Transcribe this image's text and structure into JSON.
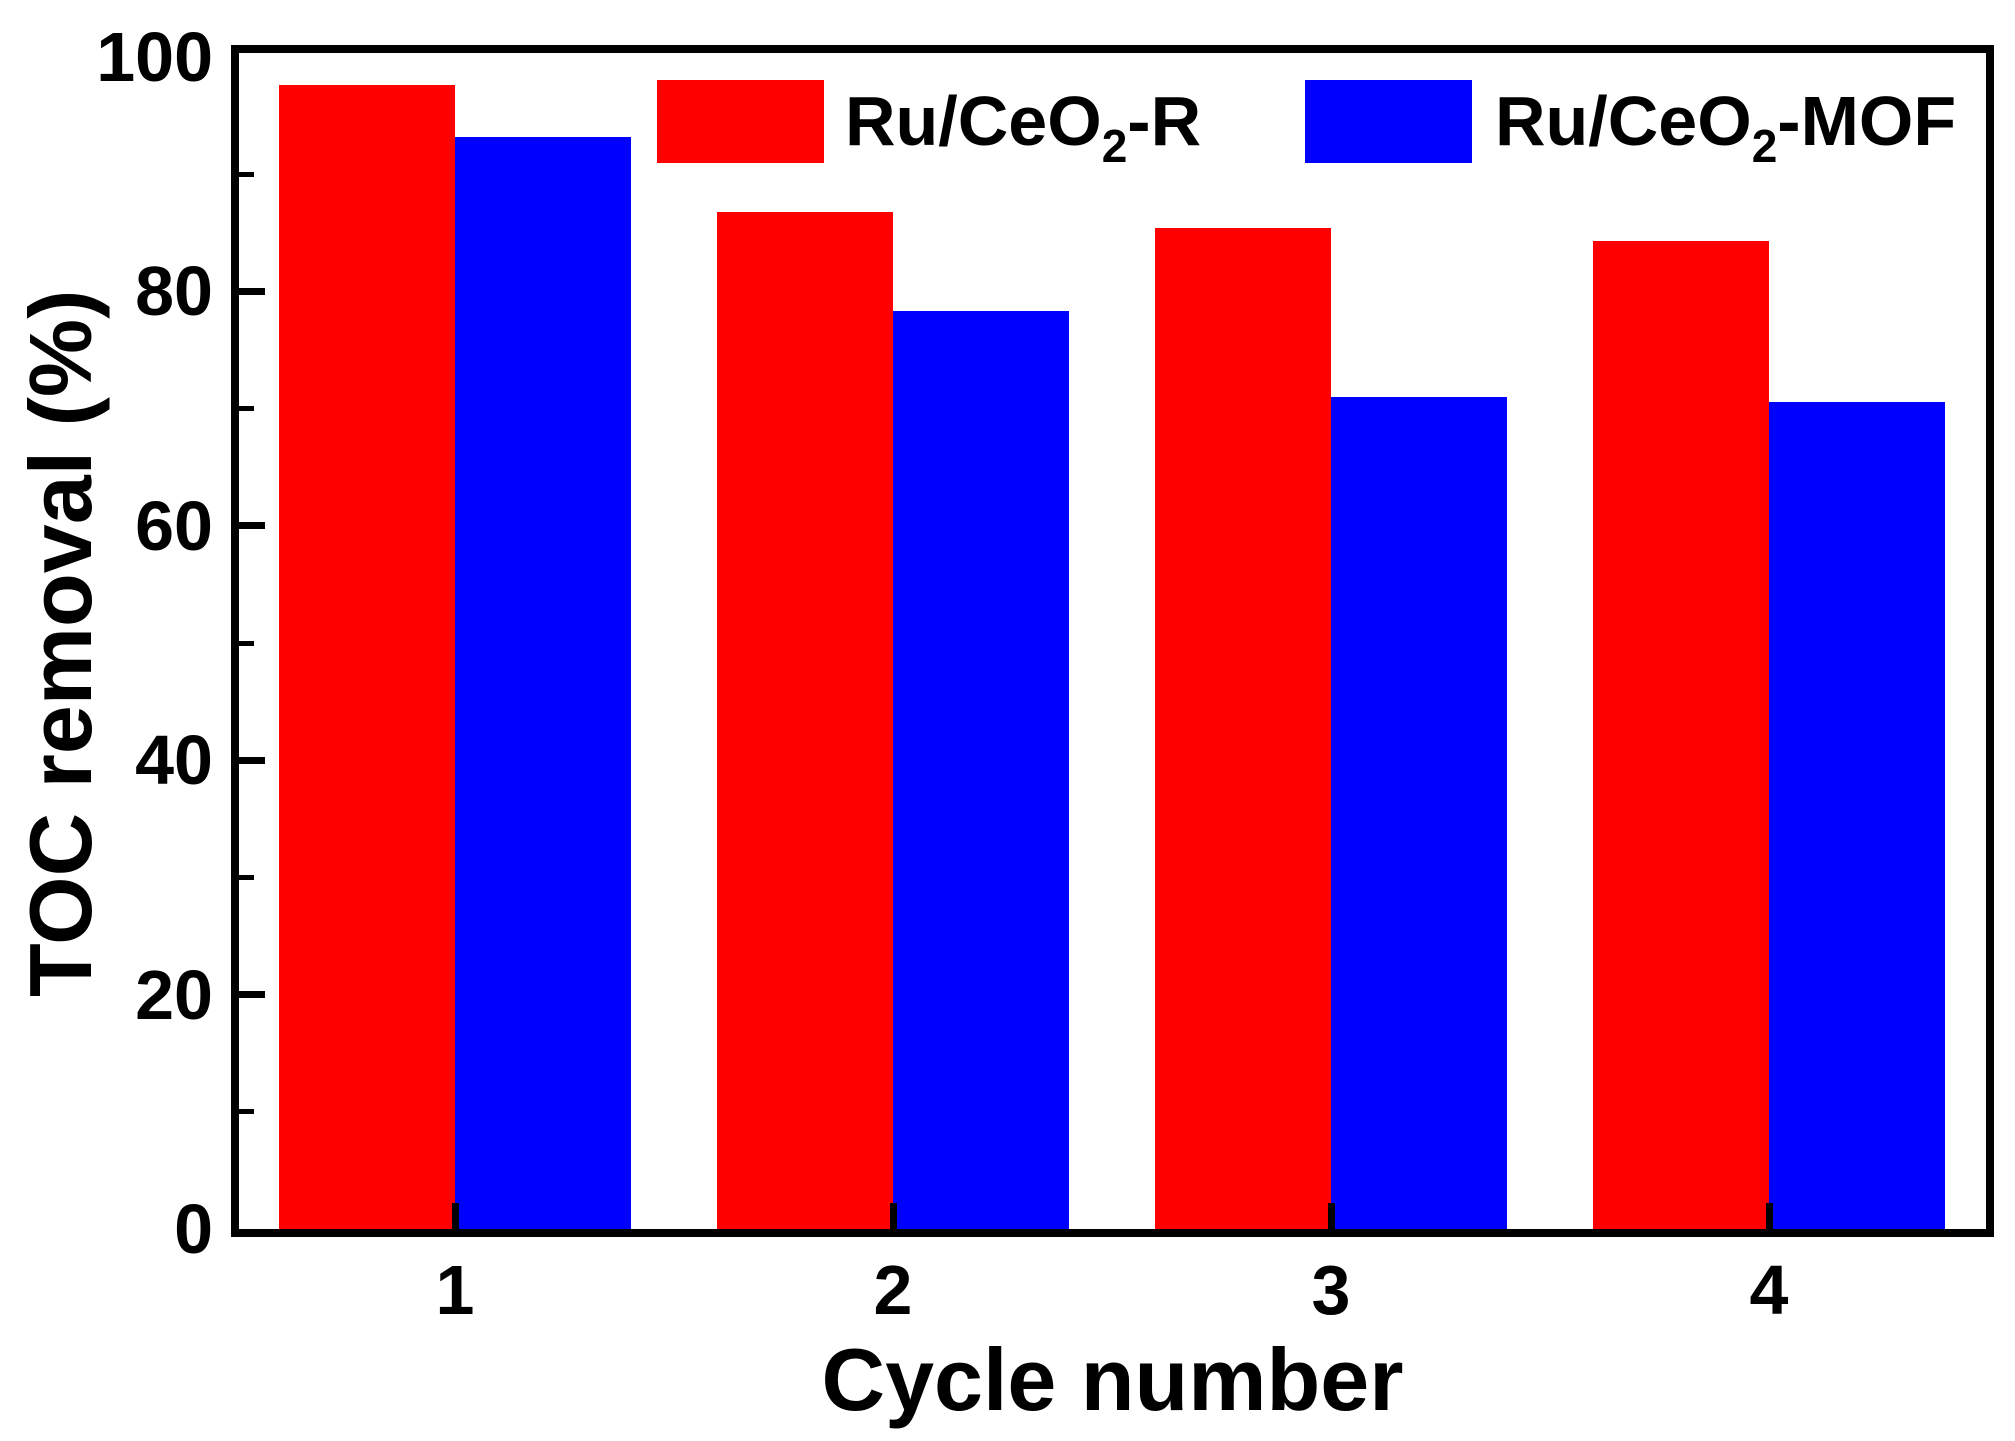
{
  "chart_data": {
    "type": "bar",
    "title": "",
    "xlabel": "Cycle number",
    "ylabel": "TOC removal (%)",
    "categories": [
      "1",
      "2",
      "3",
      "4"
    ],
    "series": [
      {
        "name": "Ru/CeO2-R",
        "color": "#FF0000",
        "values": [
          97.6,
          86.8,
          85.4,
          84.3
        ]
      },
      {
        "name": "Ru/CeO2-MOF",
        "color": "#0000FF",
        "values": [
          93.2,
          78.3,
          71.0,
          70.6
        ]
      }
    ],
    "ylim": [
      0,
      100
    ],
    "ytick_major": [
      0,
      20,
      40,
      60,
      80,
      100
    ],
    "ytick_minor": [
      10,
      30,
      50,
      70,
      90
    ],
    "grid": false,
    "legend_position": "top-inside"
  },
  "legend": {
    "items": [
      {
        "prefix": "Ru/CeO",
        "sub": "2",
        "suffix": "-R",
        "color": "#FF0000"
      },
      {
        "prefix": "Ru/CeO",
        "sub": "2",
        "suffix": "-MOF",
        "color": "#0000FF"
      }
    ]
  },
  "colors": {
    "series1": "#FF0000",
    "series2": "#0000FF",
    "axis": "#000000",
    "background": "#FFFFFF"
  }
}
